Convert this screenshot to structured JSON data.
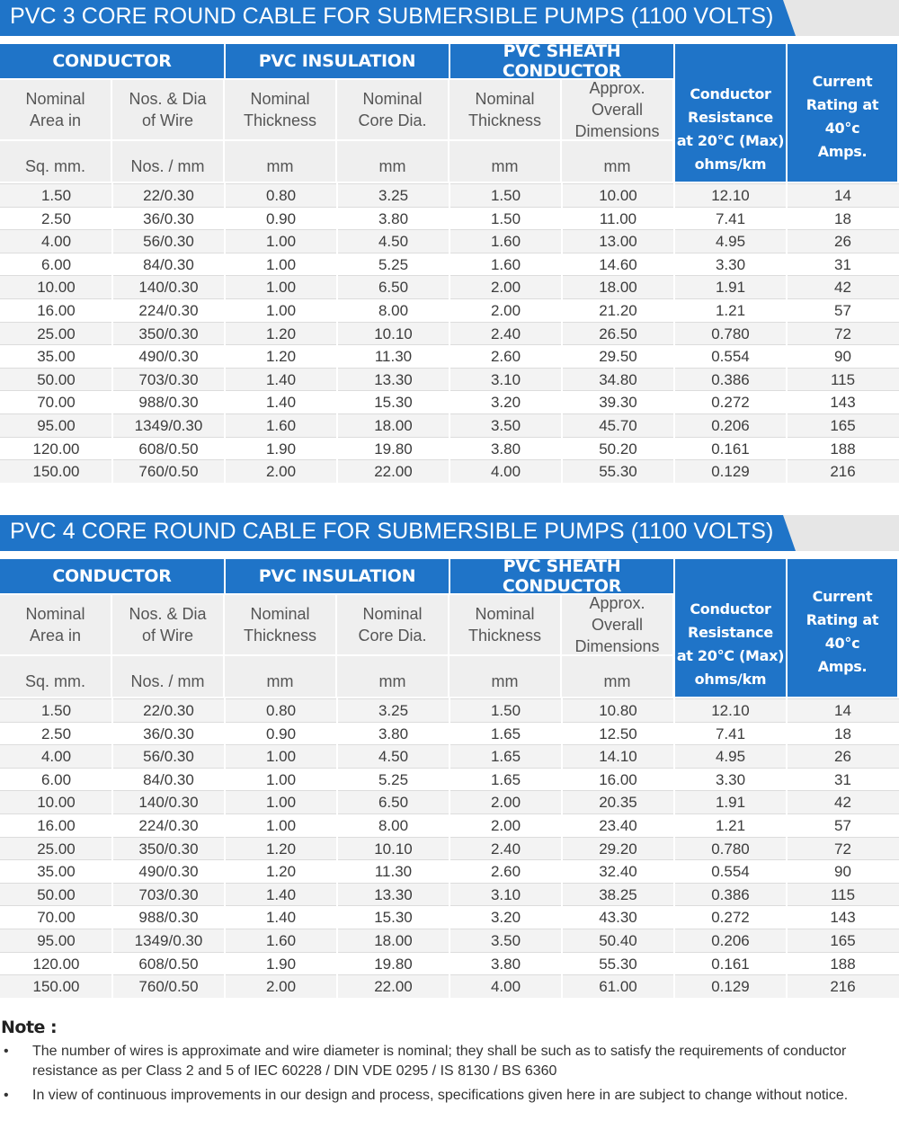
{
  "tables": [
    {
      "title": "PVC 3 CORE ROUND CABLE FOR SUBMERSIBLE PUMPS (1100 VOLTS)",
      "groups": {
        "conductor": "CONDUCTOR",
        "insulation": "PVC INSULATION",
        "sheath": "PVC SHEATH CONDUCTOR"
      },
      "resistance_header": [
        "Conductor",
        "Resistance",
        "at 20°C (Max)",
        "ohms/km"
      ],
      "rating_header": [
        "Current",
        "Rating at",
        "40°c",
        "Amps."
      ],
      "subheaders": [
        [
          "Nominal",
          "Area in"
        ],
        [
          "Nos. & Dia",
          "of Wire"
        ],
        [
          "Nominal",
          "Thickness"
        ],
        [
          "Nominal",
          "Core Dia."
        ],
        [
          "Nominal",
          "Thickness"
        ],
        [
          "Approx.",
          "Overall",
          "Dimensions"
        ]
      ],
      "units": [
        "Sq. mm.",
        "Nos. / mm",
        "mm",
        "mm",
        "mm",
        "mm"
      ],
      "rows": [
        [
          "1.50",
          "22/0.30",
          "0.80",
          "3.25",
          "1.50",
          "10.00",
          "12.10",
          "14"
        ],
        [
          "2.50",
          "36/0.30",
          "0.90",
          "3.80",
          "1.50",
          "11.00",
          "7.41",
          "18"
        ],
        [
          "4.00",
          "56/0.30",
          "1.00",
          "4.50",
          "1.60",
          "13.00",
          "4.95",
          "26"
        ],
        [
          "6.00",
          "84/0.30",
          "1.00",
          "5.25",
          "1.60",
          "14.60",
          "3.30",
          "31"
        ],
        [
          "10.00",
          "140/0.30",
          "1.00",
          "6.50",
          "2.00",
          "18.00",
          "1.91",
          "42"
        ],
        [
          "16.00",
          "224/0.30",
          "1.00",
          "8.00",
          "2.00",
          "21.20",
          "1.21",
          "57"
        ],
        [
          "25.00",
          "350/0.30",
          "1.20",
          "10.10",
          "2.40",
          "26.50",
          "0.780",
          "72"
        ],
        [
          "35.00",
          "490/0.30",
          "1.20",
          "11.30",
          "2.60",
          "29.50",
          "0.554",
          "90"
        ],
        [
          "50.00",
          "703/0.30",
          "1.40",
          "13.30",
          "3.10",
          "34.80",
          "0.386",
          "115"
        ],
        [
          "70.00",
          "988/0.30",
          "1.40",
          "15.30",
          "3.20",
          "39.30",
          "0.272",
          "143"
        ],
        [
          "95.00",
          "1349/0.30",
          "1.60",
          "18.00",
          "3.50",
          "45.70",
          "0.206",
          "165"
        ],
        [
          "120.00",
          "608/0.50",
          "1.90",
          "19.80",
          "3.80",
          "50.20",
          "0.161",
          "188"
        ],
        [
          "150.00",
          "760/0.50",
          "2.00",
          "22.00",
          "4.00",
          "55.30",
          "0.129",
          "216"
        ]
      ]
    },
    {
      "title": "PVC 4 CORE ROUND CABLE FOR SUBMERSIBLE PUMPS  (1100 VOLTS)",
      "groups": {
        "conductor": "CONDUCTOR",
        "insulation": "PVC INSULATION",
        "sheath": "PVC SHEATH CONDUCTOR"
      },
      "resistance_header": [
        "Conductor",
        "Resistance",
        "at 20°C (Max)",
        "ohms/km"
      ],
      "rating_header": [
        "Current",
        "Rating at",
        "40°c",
        "Amps."
      ],
      "subheaders": [
        [
          "Nominal",
          "Area in"
        ],
        [
          "Nos. & Dia",
          "of Wire"
        ],
        [
          "Nominal",
          "Thickness"
        ],
        [
          "Nominal",
          "Core Dia."
        ],
        [
          "Nominal",
          "Thickness"
        ],
        [
          "Approx.",
          "Overall",
          "Dimensions"
        ]
      ],
      "units": [
        "Sq. mm.",
        "Nos. / mm",
        "mm",
        "mm",
        "mm",
        "mm"
      ],
      "rows": [
        [
          "1.50",
          "22/0.30",
          "0.80",
          "3.25",
          "1.50",
          "10.80",
          "12.10",
          "14"
        ],
        [
          "2.50",
          "36/0.30",
          "0.90",
          "3.80",
          "1.65",
          "12.50",
          "7.41",
          "18"
        ],
        [
          "4.00",
          "56/0.30",
          "1.00",
          "4.50",
          "1.65",
          "14.10",
          "4.95",
          "26"
        ],
        [
          "6.00",
          "84/0.30",
          "1.00",
          "5.25",
          "1.65",
          "16.00",
          "3.30",
          "31"
        ],
        [
          "10.00",
          "140/0.30",
          "1.00",
          "6.50",
          "2.00",
          "20.35",
          "1.91",
          "42"
        ],
        [
          "16.00",
          "224/0.30",
          "1.00",
          "8.00",
          "2.00",
          "23.40",
          "1.21",
          "57"
        ],
        [
          "25.00",
          "350/0.30",
          "1.20",
          "10.10",
          "2.40",
          "29.20",
          "0.780",
          "72"
        ],
        [
          "35.00",
          "490/0.30",
          "1.20",
          "11.30",
          "2.60",
          "32.40",
          "0.554",
          "90"
        ],
        [
          "50.00",
          "703/0.30",
          "1.40",
          "13.30",
          "3.10",
          "38.25",
          "0.386",
          "115"
        ],
        [
          "70.00",
          "988/0.30",
          "1.40",
          "15.30",
          "3.20",
          "43.30",
          "0.272",
          "143"
        ],
        [
          "95.00",
          "1349/0.30",
          "1.60",
          "18.00",
          "3.50",
          "50.40",
          "0.206",
          "165"
        ],
        [
          "120.00",
          "608/0.50",
          "1.90",
          "19.80",
          "3.80",
          "55.30",
          "0.161",
          "188"
        ],
        [
          "150.00",
          "760/0.50",
          "2.00",
          "22.00",
          "4.00",
          "61.00",
          "0.129",
          "216"
        ]
      ]
    }
  ],
  "notes": {
    "heading": "Note :",
    "items": [
      "The number of wires is approximate and wire diameter is nominal; they shall be such as to satisfy the requirements of conductor resistance as per Class 2 and 5 of IEC 60228 / DIN VDE 0295 / IS 8130 / BS 6360",
      "In view of continuous improvements in our design and process, specifications given here in are subject to change without notice."
    ]
  },
  "colors": {
    "header_blue": "#1f74c8",
    "subheader_gray": "#efefef",
    "row_alt": "#f3f3f3"
  }
}
